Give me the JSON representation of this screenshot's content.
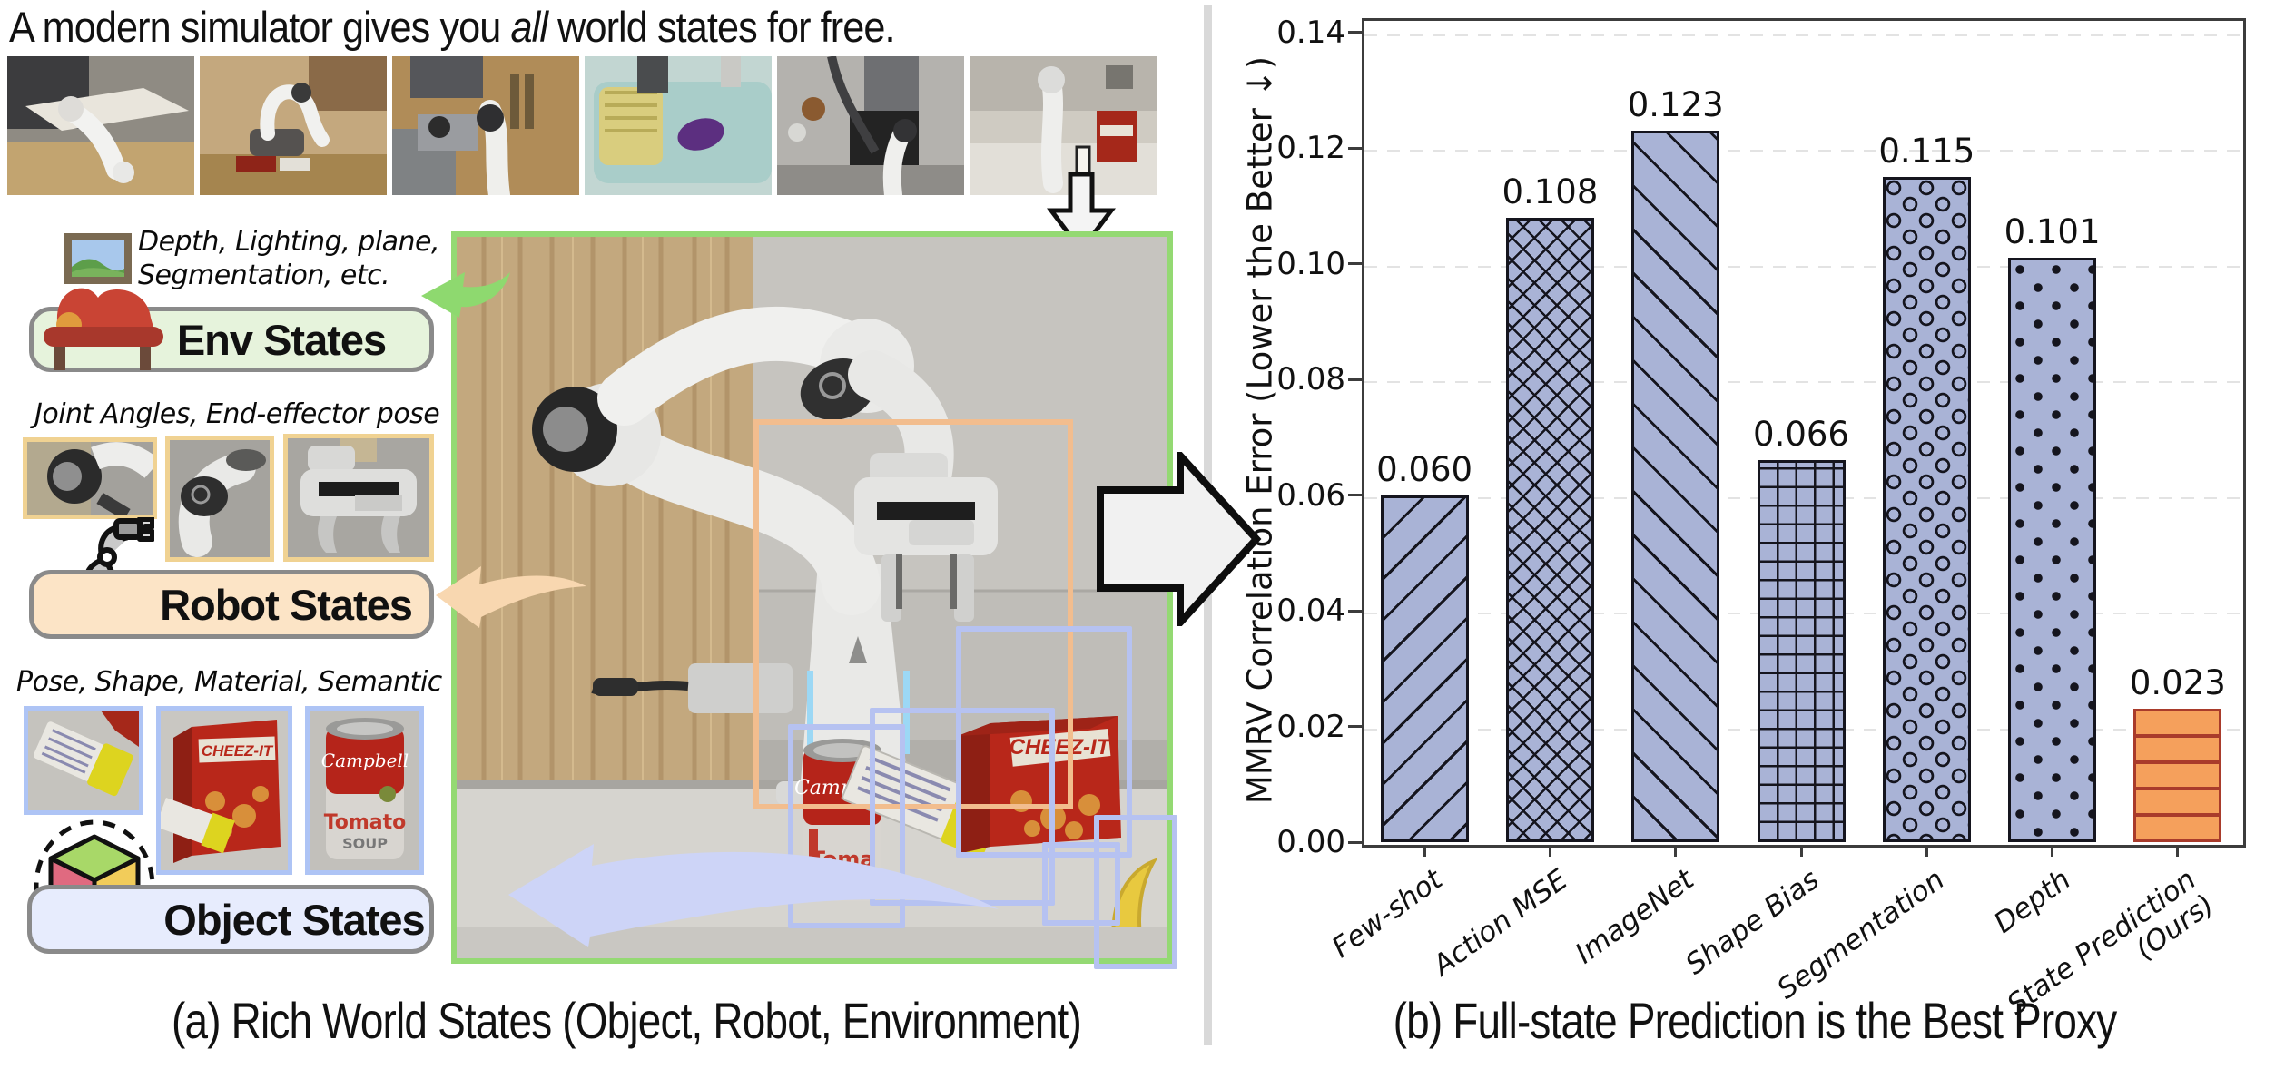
{
  "title": {
    "pre": "A modern simulator gives you ",
    "em": "all",
    "post": " world states for free."
  },
  "thumbnails": [
    {
      "name": "sim-scene-kitchen-counter"
    },
    {
      "name": "sim-scene-wooden-table-pot"
    },
    {
      "name": "sim-scene-stove"
    },
    {
      "name": "sim-scene-sink-eggplant"
    },
    {
      "name": "sim-scene-grill"
    },
    {
      "name": "sim-scene-counter-cheezit"
    }
  ],
  "panel_a": {
    "caption": "(a) Rich World States (Object, Robot, Environment)",
    "env": {
      "note_line1": "Depth, Lighting, plane,",
      "note_line2": "Segmentation, etc.",
      "label": "Env States"
    },
    "robot": {
      "note": "Joint Angles, End-effector pose",
      "label": "Robot States"
    },
    "object": {
      "note": "Pose, Shape, Material, Semantic",
      "label": "Object States"
    }
  },
  "panel_b": {
    "caption": "(b) Full-state Prediction is the Best Proxy"
  },
  "icons": {
    "picture": "picture-frame-icon",
    "couch": "couch-icon",
    "robot_arm": "robot-arm-icon",
    "cube": "object-cube-icon",
    "down_arrow": "down-arrow-icon",
    "flow_arrow": "flow-right-arrow-icon",
    "env_arrow": "green-left-arrow-icon",
    "robot_arrow": "peach-left-arrow-icon",
    "object_arrow": "lavender-left-arrow-icon"
  },
  "colors": {
    "bar_blue": "#a9b3d6",
    "bar_orange": "#f5a05c",
    "orange_edge": "#a93b2b",
    "hatch": "#15151e",
    "photo_border_green": "#94d973",
    "robot_box_orange": "#f2bd8e",
    "object_box_blue": "#b6c2f1",
    "env_pill_bg": "#e6f3dc",
    "robot_pill_bg": "#fce4c6",
    "object_pill_bg": "#e7ecfd"
  },
  "chart_data": {
    "type": "bar",
    "categories": [
      "Few-shot",
      "Action MSE",
      "ImageNet",
      "Shape Bias",
      "Segmentation",
      "Depth",
      "State Prediction\n(Ours)"
    ],
    "values": [
      0.06,
      0.108,
      0.123,
      0.066,
      0.115,
      0.101,
      0.023
    ],
    "value_labels": [
      "0.060",
      "0.108",
      "0.123",
      "0.066",
      "0.115",
      "0.101",
      "0.023"
    ],
    "title": "",
    "xlabel": "",
    "ylabel": "MMRV Correlation Error (Lower the Better ↓)",
    "ylim": [
      0,
      0.1425
    ],
    "yticks": [
      0.0,
      0.02,
      0.04,
      0.06,
      0.08,
      0.1,
      0.12,
      0.14
    ],
    "ytick_labels": [
      "0.00",
      "0.02",
      "0.04",
      "0.06",
      "0.08",
      "0.10",
      "0.12",
      "0.14"
    ],
    "grid": "horizontal-dashed",
    "legend": "none",
    "hatches": [
      "/",
      "x",
      "\\",
      "+",
      "O",
      ".",
      "-"
    ],
    "bar_face": [
      "#a9b3d6",
      "#a9b3d6",
      "#a9b3d6",
      "#a9b3d6",
      "#a9b3d6",
      "#a9b3d6",
      "#f5a05c"
    ],
    "bar_edge": [
      "#15151e",
      "#15151e",
      "#15151e",
      "#15151e",
      "#15151e",
      "#15151e",
      "#a93b2b"
    ]
  }
}
